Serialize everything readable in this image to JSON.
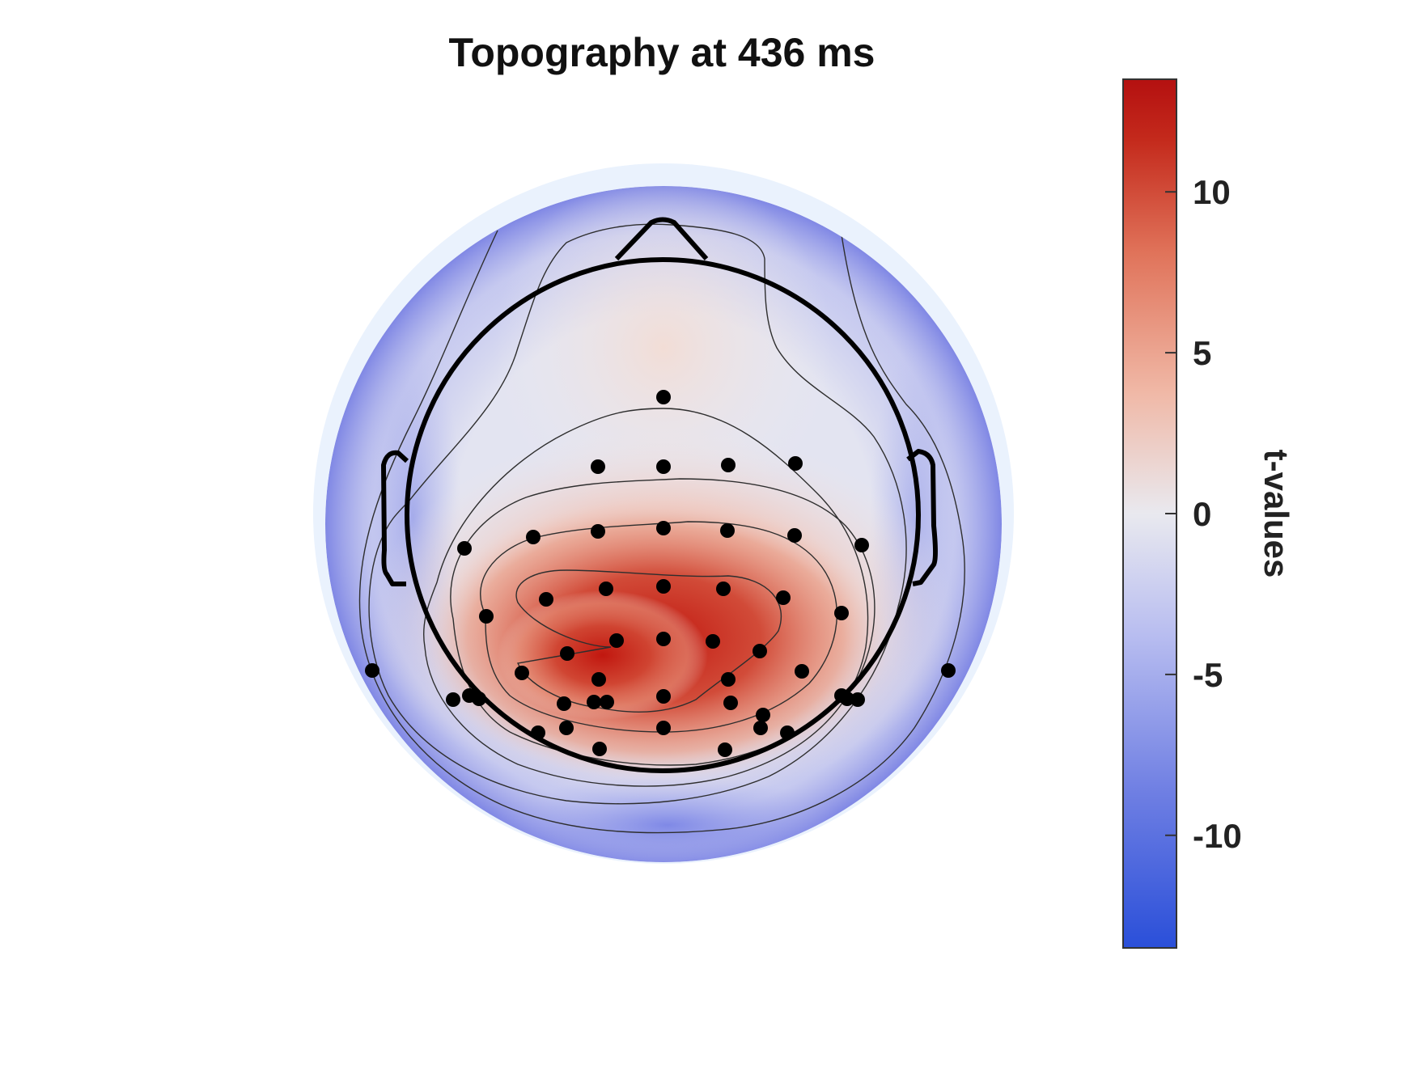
{
  "chart_data": {
    "type": "heatmap",
    "subtype": "eeg-topographic-map",
    "title": "Topography at 436 ms",
    "colorbar": {
      "label": "t-values",
      "range": [
        -13.5,
        13.5
      ],
      "ticks": [
        10,
        5,
        0,
        -5,
        -10
      ],
      "tick_labels": [
        "10",
        "5",
        "0",
        "-5",
        "-10"
      ],
      "colormap": [
        "#2a4fd9",
        "#6f7fe3",
        "#b8bdf0",
        "#e9e9ef",
        "#f0b8a6",
        "#e0735a",
        "#c42a1c",
        "#b41010"
      ],
      "placement": "right"
    },
    "peak": {
      "value": 13,
      "location": "left-centroparietal"
    },
    "electrodes_shown": 49,
    "contour_levels": [
      -10,
      -6,
      -2,
      2,
      6,
      10
    ],
    "head_outline": true,
    "grid": false
  }
}
